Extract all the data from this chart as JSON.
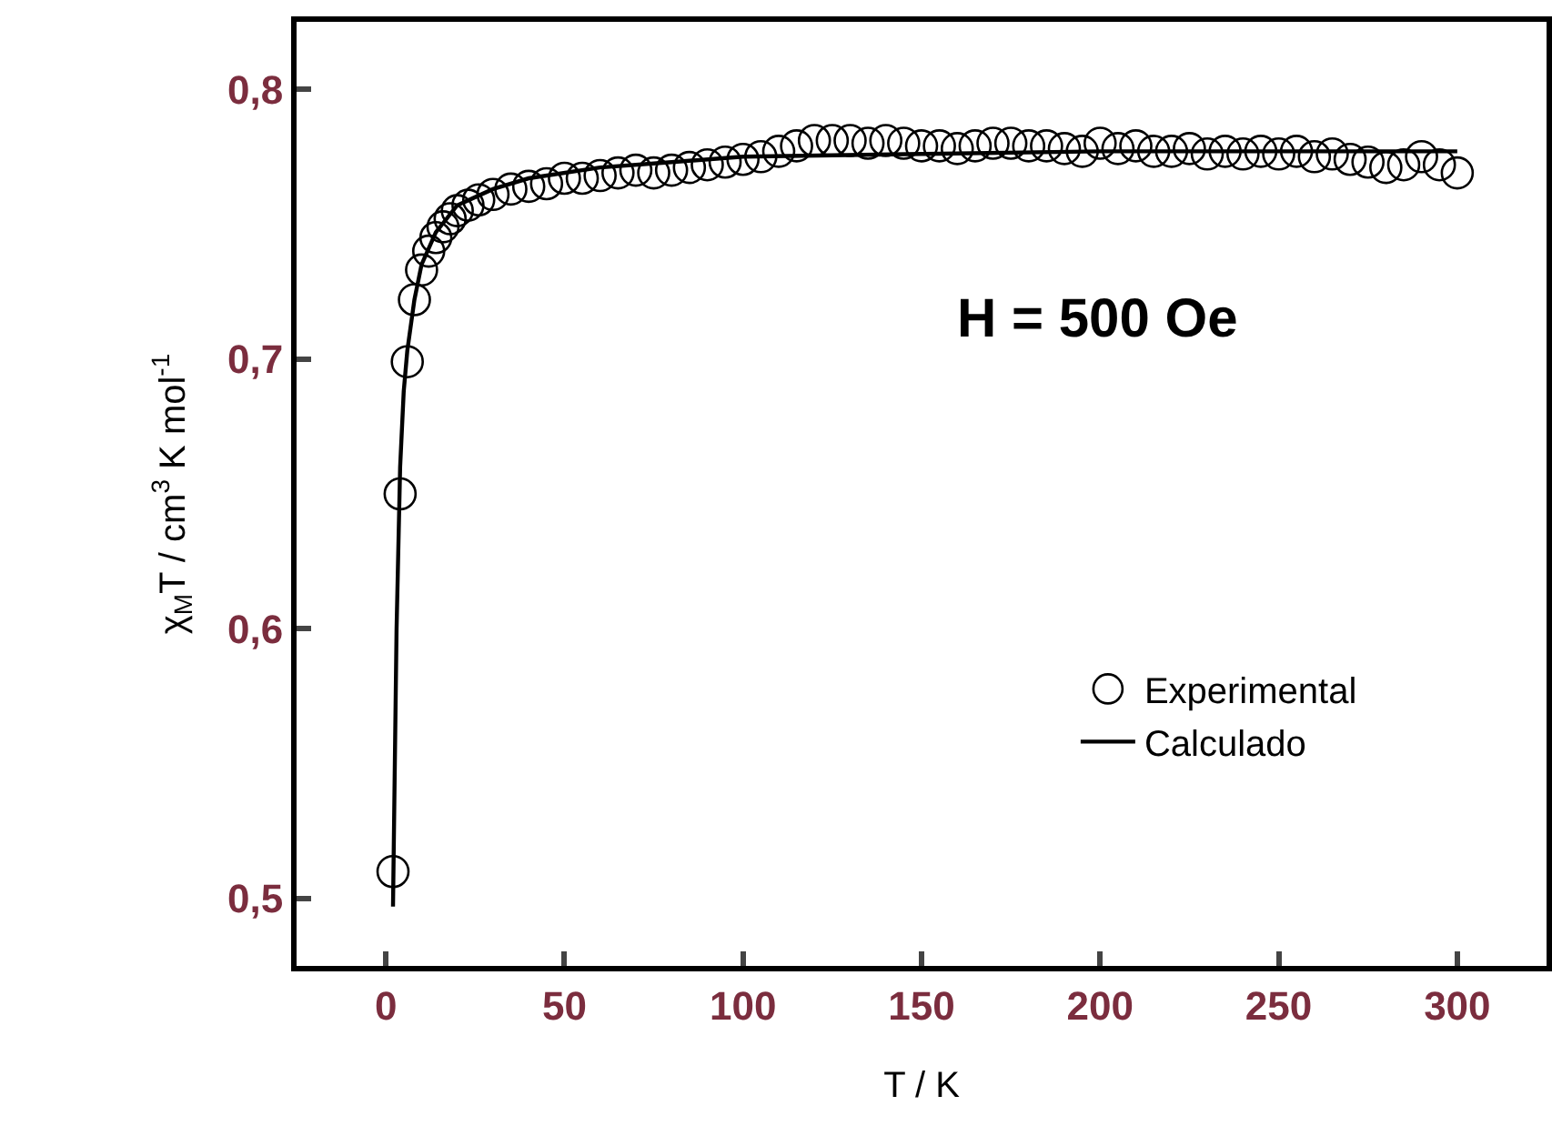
{
  "chart_data": {
    "type": "scatter",
    "xlabel": "T / K",
    "ylabel": "χ$_{M}$T / cm$^{3}$ K mol$^{-1}$",
    "annotations": [
      "H = 500 Oe"
    ],
    "xlim": [
      -25,
      325
    ],
    "xticks": [
      0,
      50,
      100,
      150,
      200,
      250,
      300
    ],
    "ylim": [
      0.475,
      0.825
    ],
    "yticks": [
      {
        "value": 0.5,
        "label": "0,5"
      },
      {
        "value": 0.6,
        "label": "0,6"
      },
      {
        "value": 0.7,
        "label": "0,7"
      },
      {
        "value": 0.8,
        "label": "0,8"
      }
    ],
    "grid": false,
    "legend": "bottom right",
    "series": [
      {
        "name": "Experimental",
        "marker": "circle",
        "color": "#000000",
        "x": [
          2,
          4,
          6,
          8,
          10,
          12,
          14,
          16,
          18,
          20,
          23,
          26,
          30,
          35,
          40,
          45,
          50,
          55,
          60,
          65,
          70,
          75,
          80,
          85,
          90,
          95,
          100,
          105,
          110,
          115,
          120,
          125,
          130,
          135,
          140,
          145,
          150,
          155,
          160,
          165,
          170,
          175,
          180,
          185,
          190,
          195,
          200,
          205,
          210,
          215,
          220,
          225,
          230,
          235,
          240,
          245,
          250,
          255,
          260,
          265,
          270,
          275,
          280,
          285,
          290,
          295,
          300
        ],
        "values": [
          0.51,
          0.65,
          0.699,
          0.722,
          0.733,
          0.74,
          0.745,
          0.749,
          0.752,
          0.755,
          0.757,
          0.759,
          0.761,
          0.763,
          0.764,
          0.765,
          0.767,
          0.767,
          0.768,
          0.769,
          0.77,
          0.769,
          0.77,
          0.771,
          0.772,
          0.773,
          0.774,
          0.775,
          0.777,
          0.779,
          0.781,
          0.781,
          0.781,
          0.78,
          0.781,
          0.78,
          0.779,
          0.779,
          0.778,
          0.779,
          0.78,
          0.78,
          0.779,
          0.779,
          0.778,
          0.777,
          0.78,
          0.778,
          0.779,
          0.777,
          0.777,
          0.778,
          0.776,
          0.777,
          0.776,
          0.777,
          0.776,
          0.777,
          0.775,
          0.776,
          0.774,
          0.773,
          0.771,
          0.772,
          0.775,
          0.772,
          0.769
        ]
      },
      {
        "name": "Calculado",
        "type": "line",
        "marker": "none",
        "color": "#000000",
        "line_style": "solid",
        "x": [
          2,
          3,
          4,
          5,
          6,
          8,
          10,
          14,
          20,
          30,
          40,
          60,
          80,
          100,
          150,
          200,
          250,
          300
        ],
        "values": [
          0.497,
          0.6,
          0.66,
          0.688,
          0.703,
          0.722,
          0.735,
          0.747,
          0.757,
          0.763,
          0.767,
          0.771,
          0.773,
          0.775,
          0.776,
          0.777,
          0.777,
          0.777
        ]
      }
    ]
  }
}
